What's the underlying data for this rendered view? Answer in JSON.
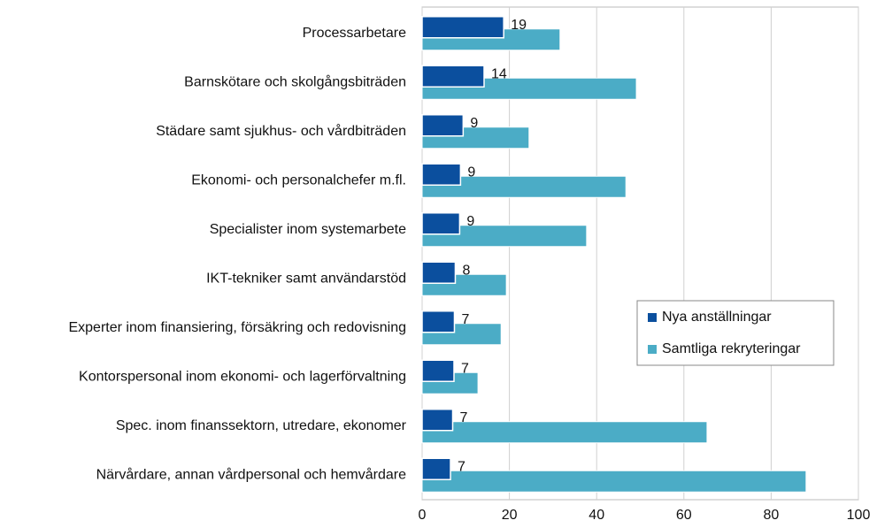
{
  "chart_data": {
    "type": "bar",
    "orientation": "horizontal",
    "categories": [
      "Processarbetare",
      "Barnskötare och skolgångsbiträden",
      "Städare samt sjukhus- och vårdbiträden",
      "Ekonomi- och personalchefer m.fl.",
      "Specialister inom systemarbete",
      "IKT-tekniker samt användarstöd",
      "Experter inom finansiering, försäkring och redovisning",
      "Kontorspersonal inom ekonomi- och lagerförvaltning",
      "Spec. inom finanssektorn, utredare, ekonomer",
      "Närvårdare, annan vårdpersonal och hemvårdare"
    ],
    "series": [
      {
        "name": "Nya anställningar",
        "color": "#0b4f9e",
        "values": [
          18.7,
          14.2,
          9.4,
          8.8,
          8.6,
          7.6,
          7.4,
          7.3,
          7.0,
          6.5
        ],
        "value_labels": [
          "19",
          "14",
          "9",
          "9",
          "9",
          "8",
          "7",
          "7",
          "7",
          "7"
        ]
      },
      {
        "name": "Samtliga rekryteringar",
        "color": "#4bacc6",
        "values": [
          31.6,
          49.1,
          24.5,
          46.7,
          37.7,
          19.3,
          18.1,
          12.8,
          65.3,
          88.0
        ]
      }
    ],
    "xlim": [
      0,
      100
    ],
    "xticks": [
      0,
      20,
      40,
      60,
      80,
      100
    ],
    "grid": true,
    "legend": "right"
  }
}
